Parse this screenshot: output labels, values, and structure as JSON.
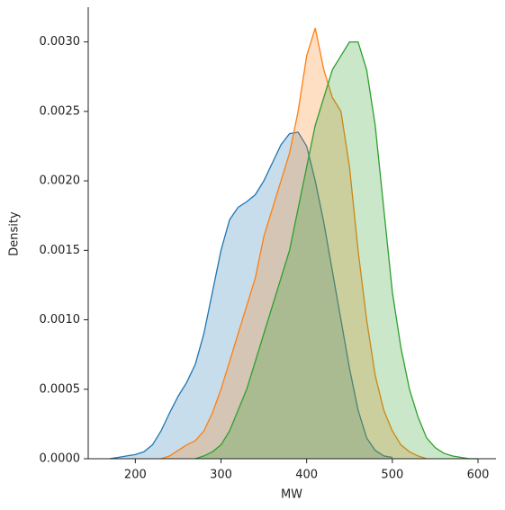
{
  "chart_data": {
    "type": "kde",
    "x_label": "MW",
    "y_label": "Density",
    "x": [
      170,
      180,
      190,
      200,
      210,
      220,
      230,
      240,
      250,
      260,
      270,
      280,
      290,
      300,
      310,
      320,
      330,
      340,
      350,
      360,
      370,
      380,
      390,
      400,
      410,
      420,
      430,
      440,
      450,
      460,
      470,
      480,
      490,
      500,
      510,
      520,
      530,
      540,
      550,
      560,
      570,
      580,
      590,
      600
    ],
    "series": [
      {
        "color": "#1f77b4",
        "values": [
          0,
          1e-05,
          2e-05,
          3e-05,
          5e-05,
          0.0001,
          0.0002,
          0.00033,
          0.00045,
          0.00055,
          0.00068,
          0.0009,
          0.0012,
          0.0015,
          0.00172,
          0.00181,
          0.00185,
          0.0019,
          0.002,
          0.00213,
          0.00226,
          0.00234,
          0.00235,
          0.00225,
          0.002,
          0.0017,
          0.00135,
          0.001,
          0.00065,
          0.00035,
          0.00015,
          6e-05,
          2e-05,
          1e-05,
          null,
          null,
          null,
          null,
          null,
          null,
          null,
          null,
          null,
          null
        ]
      },
      {
        "color": "#ff7f0e",
        "values": [
          null,
          null,
          null,
          null,
          null,
          null,
          0,
          2e-05,
          6e-05,
          0.0001,
          0.00013,
          0.0002,
          0.00033,
          0.0005,
          0.0007,
          0.0009,
          0.0011,
          0.0013,
          0.0016,
          0.0018,
          0.002,
          0.0022,
          0.0025,
          0.0029,
          0.0031,
          0.0028,
          0.0026,
          0.0025,
          0.0021,
          0.0015,
          0.001,
          0.0006,
          0.00035,
          0.0002,
          0.0001,
          5e-05,
          2e-05,
          0,
          null,
          null,
          null,
          null,
          null,
          null
        ]
      },
      {
        "color": "#2ca02c",
        "values": [
          null,
          null,
          null,
          null,
          null,
          null,
          null,
          null,
          null,
          null,
          0,
          2e-05,
          5e-05,
          0.0001,
          0.0002,
          0.00035,
          0.0005,
          0.0007,
          0.0009,
          0.0011,
          0.0013,
          0.0015,
          0.0018,
          0.0021,
          0.0024,
          0.0026,
          0.0028,
          0.0029,
          0.003,
          0.003,
          0.0028,
          0.0024,
          0.0018,
          0.0012,
          0.0008,
          0.0005,
          0.0003,
          0.00015,
          8e-05,
          4e-05,
          2e-05,
          1e-05,
          0,
          0
        ]
      }
    ],
    "xlim": [
      145,
      621
    ],
    "ylim": [
      0,
      0.00325
    ],
    "xticks": [
      200,
      300,
      400,
      500,
      600
    ],
    "yticks": [
      {
        "value": 0,
        "label": "0.0000"
      },
      {
        "value": 0.0005,
        "label": "0.0005"
      },
      {
        "value": 0.001,
        "label": "0.0010"
      },
      {
        "value": 0.0015,
        "label": "0.0015"
      },
      {
        "value": 0.002,
        "label": "0.0020"
      },
      {
        "value": 0.0025,
        "label": "0.0025"
      },
      {
        "value": 0.003,
        "label": "0.0030"
      }
    ],
    "fill_alpha": 0.25
  }
}
